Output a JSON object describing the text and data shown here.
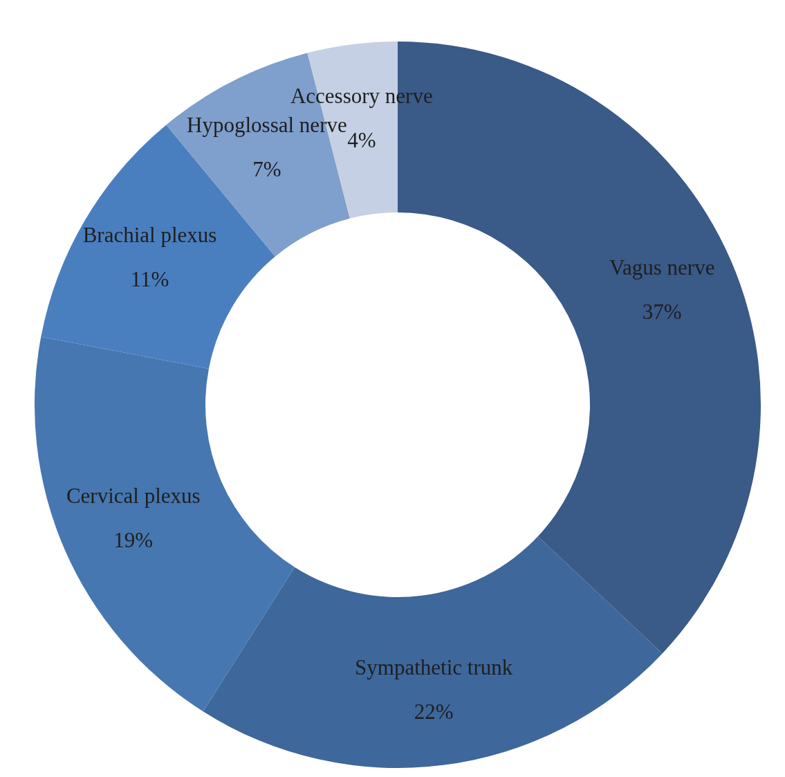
{
  "chart_data": {
    "type": "donut",
    "categories": [
      "Vagus nerve",
      "Sympathetic trunk",
      "Cervical plexus",
      "Brachial plexus",
      "Hypoglossal nerve",
      "Accessory nerve"
    ],
    "values": [
      37,
      22,
      19,
      11,
      7,
      4
    ],
    "colors": [
      "#3a5a87",
      "#3e679b",
      "#4677b0",
      "#4a7fbf",
      "#7f9fcc",
      "#c5d0e4"
    ],
    "value_labels": [
      "37%",
      "22%",
      "19%",
      "11%",
      "7%",
      "4%"
    ]
  }
}
